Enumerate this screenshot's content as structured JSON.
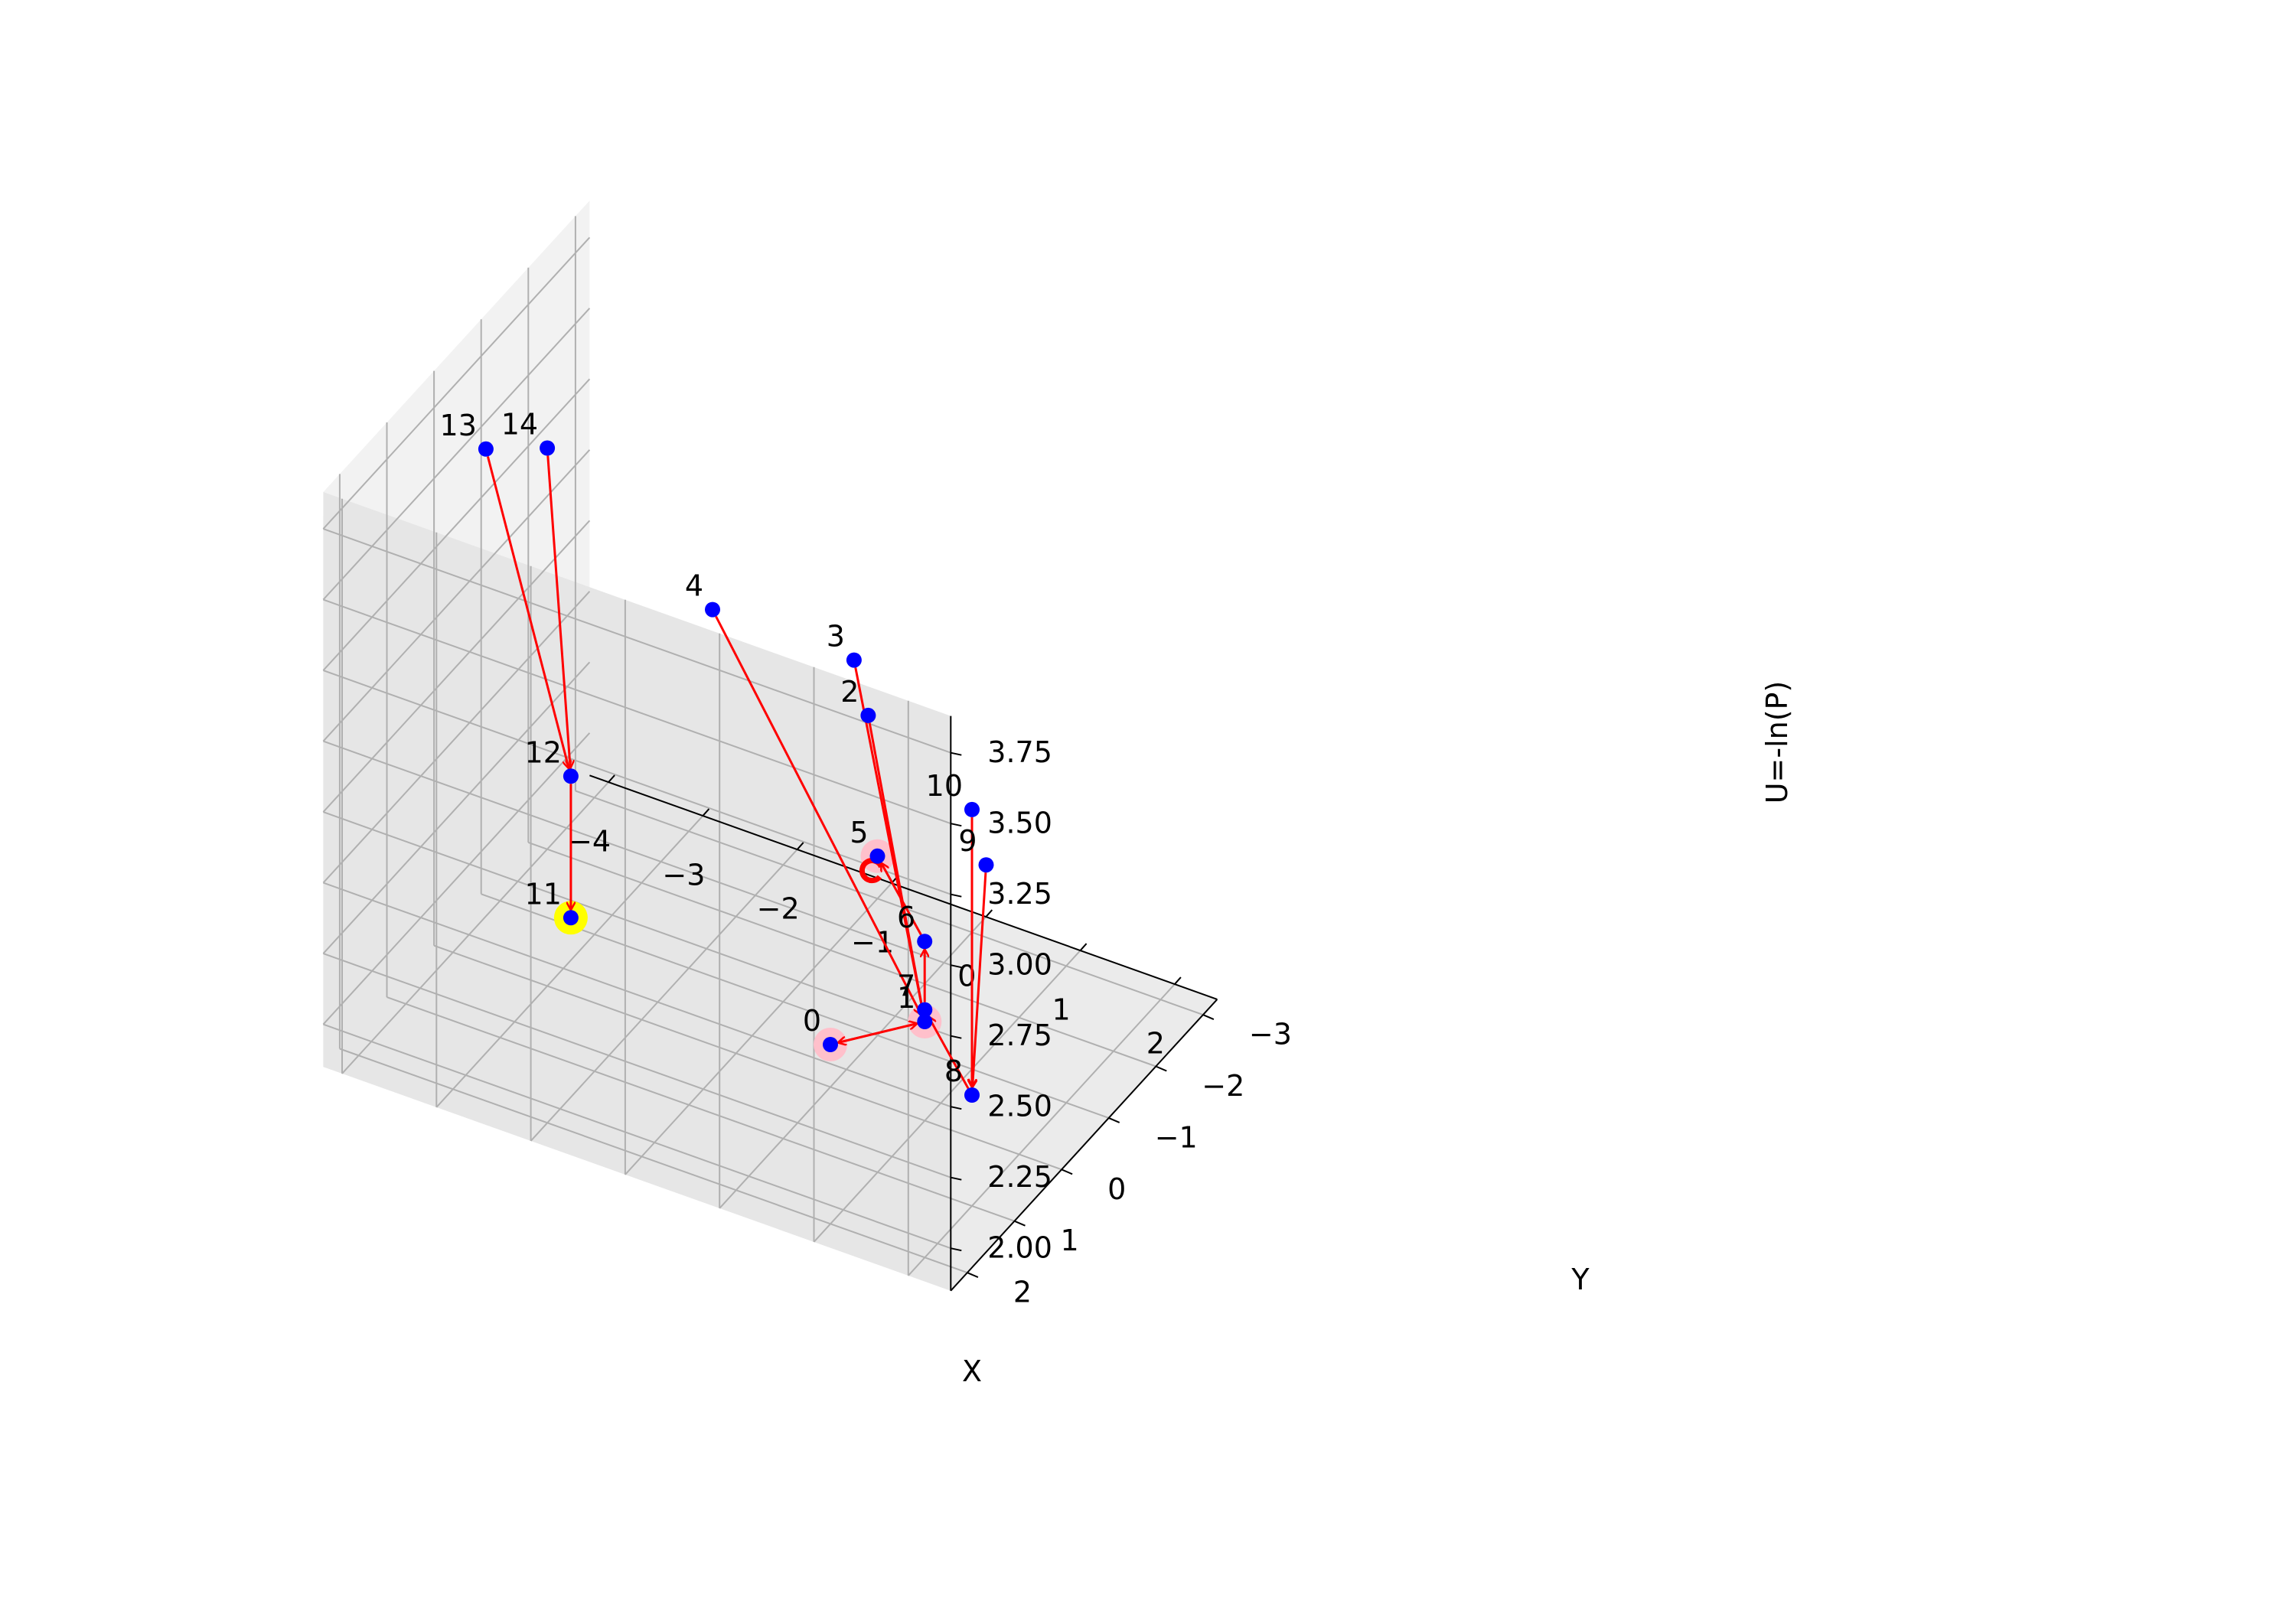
{
  "chart_data": {
    "type": "scatter3d",
    "title": "",
    "xlabel": "X",
    "ylabel": "Y",
    "zlabel": "U=-ln(P)",
    "xlim": [
      -4,
      2
    ],
    "ylim": [
      -3,
      2
    ],
    "zlim": [
      2.0,
      3.75
    ],
    "xticks": [
      "−4",
      "−3",
      "−2",
      "−1",
      "0",
      "1",
      "2"
    ],
    "yticks": [
      "−3",
      "−2",
      "−1",
      "0",
      "1",
      "2"
    ],
    "zticks": [
      "2.00",
      "2.25",
      "2.50",
      "2.75",
      "3.00",
      "3.25",
      "3.50",
      "3.75"
    ],
    "grid": true,
    "colors": {
      "point": "#0000ff",
      "arrow": "#ff0000",
      "highlight_pink": "#ffc0cb",
      "highlight_yellow": "#ffff00"
    },
    "points": [
      {
        "label": "0",
        "x": 0.0,
        "y": 0.0,
        "z": 2.0
      },
      {
        "label": "1",
        "x": 1.0,
        "y": 0.0,
        "z": 2.2
      },
      {
        "label": "2",
        "x": 1.0,
        "y": 1.2,
        "z": 3.5
      },
      {
        "label": "3",
        "x": 1.0,
        "y": 1.5,
        "z": 3.75
      },
      {
        "label": "4",
        "x": -0.5,
        "y": 1.5,
        "z": 3.75
      },
      {
        "label": "5",
        "x": -1.0,
        "y": -3.0,
        "z": 2.0
      },
      {
        "label": "6",
        "x": 0.0,
        "y": -2.0,
        "z": 2.0
      },
      {
        "label": "7",
        "x": 0.5,
        "y": -1.0,
        "z": 2.0
      },
      {
        "label": "8",
        "x": 1.5,
        "y": 0.0,
        "z": 2.0
      },
      {
        "label": "9",
        "x": 2.0,
        "y": 0.7,
        "z": 3.0
      },
      {
        "label": "10",
        "x": 2.0,
        "y": 1.0,
        "z": 3.25
      },
      {
        "label": "11",
        "x": -3.0,
        "y": -0.5,
        "z": 2.0
      },
      {
        "label": "12",
        "x": -3.0,
        "y": -0.5,
        "z": 2.5
      },
      {
        "label": "13",
        "x": -4.0,
        "y": -0.7,
        "z": 3.5
      },
      {
        "label": "14",
        "x": -3.0,
        "y": 0.0,
        "z": 3.75
      }
    ],
    "arrows": [
      {
        "from": "0",
        "to": "1"
      },
      {
        "from": "1",
        "to": "0"
      },
      {
        "from": "2",
        "to": "1"
      },
      {
        "from": "3",
        "to": "1"
      },
      {
        "from": "4",
        "to": "1"
      },
      {
        "from": "9",
        "to": "8"
      },
      {
        "from": "10",
        "to": "8"
      },
      {
        "from": "8",
        "to": "7"
      },
      {
        "from": "7",
        "to": "6"
      },
      {
        "from": "6",
        "to": "5"
      },
      {
        "from": "13",
        "to": "12"
      },
      {
        "from": "14",
        "to": "12"
      },
      {
        "from": "12",
        "to": "11"
      }
    ],
    "highlights": [
      {
        "point": "0",
        "color": "pink"
      },
      {
        "point": "1",
        "color": "pink"
      },
      {
        "point": "5",
        "color": "pink"
      },
      {
        "point": "11",
        "color": "yellow"
      }
    ],
    "self_loop": "5"
  }
}
